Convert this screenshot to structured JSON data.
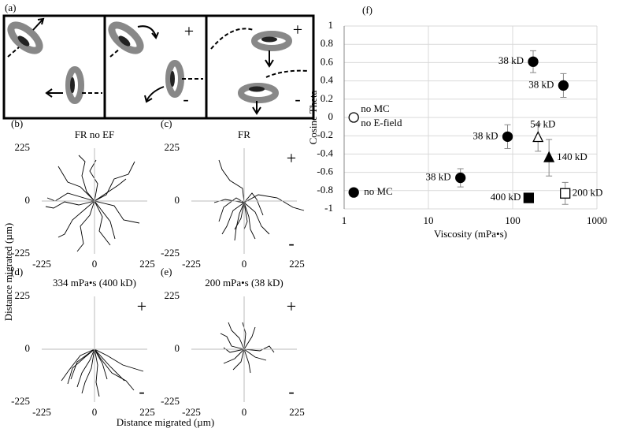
{
  "panel_a": {
    "panel": "(a)",
    "signs": [
      "+",
      "-",
      "+",
      "-"
    ]
  },
  "track_axes": {
    "xlabel": "Distance migrated (µm)",
    "ylabel": "Distance migrated (µm)"
  },
  "chart_data": [
    {
      "type": "track",
      "panel": "(b)",
      "title": "FR no EF",
      "xlim": [
        -225,
        225
      ],
      "ylim": [
        -225,
        225
      ],
      "xticks": [
        -225,
        0,
        225
      ],
      "yticks": [
        -225,
        0,
        225
      ],
      "annotations": []
    },
    {
      "type": "track",
      "panel": "(c)",
      "title": "FR",
      "xlim": [
        -225,
        225
      ],
      "ylim": [
        -225,
        225
      ],
      "xticks": [
        -225,
        0,
        225
      ],
      "yticks": [
        -225,
        0,
        225
      ],
      "annotations": [
        "+",
        "-"
      ]
    },
    {
      "type": "track",
      "panel": "(d)",
      "title": "334 mPa•s (400 kD)",
      "xlim": [
        -225,
        225
      ],
      "ylim": [
        -225,
        225
      ],
      "xticks": [
        -225,
        0,
        225
      ],
      "yticks": [
        -225,
        0,
        225
      ],
      "annotations": [
        "+",
        "-"
      ]
    },
    {
      "type": "track",
      "panel": "(e)",
      "title": "200 mPa•s  (38 kD)",
      "xlim": [
        -225,
        225
      ],
      "ylim": [
        -225,
        225
      ],
      "xticks": [
        -225,
        0,
        225
      ],
      "yticks": [
        -225,
        0,
        225
      ],
      "annotations": [
        "+",
        "-"
      ]
    },
    {
      "type": "scatter",
      "panel": "(f)",
      "x_label": "Viscosity (mPa•s)",
      "y_label": "Cosine Theta",
      "xscale": "log",
      "xlim": [
        1,
        1000
      ],
      "xticks": [
        1,
        10,
        100,
        1000
      ],
      "ylim": [
        -1,
        1
      ],
      "yticks": [
        -1,
        -0.8,
        -0.6,
        -0.4,
        -0.2,
        0,
        0.2,
        0.4,
        0.6,
        0.8,
        1
      ],
      "grid": true,
      "x": [
        1.3,
        24,
        87,
        175,
        400,
        1.3,
        200,
        270,
        155,
        420
      ],
      "values": [
        -0.82,
        -0.66,
        -0.21,
        0.61,
        0.35,
        0,
        -0.22,
        -0.44,
        -0.88,
        -0.83
      ],
      "errors": [
        null,
        0.1,
        0.13,
        0.12,
        0.13,
        0.04,
        0.15,
        0.2,
        null,
        0.12
      ],
      "markers": [
        "circle",
        "circle",
        "circle",
        "circle",
        "circle",
        "open-circle",
        "open-triangle",
        "triangle",
        "square",
        "open-square"
      ],
      "point_labels": [
        [
          "no MC"
        ],
        [
          "38 kD"
        ],
        [
          "38 kD"
        ],
        [
          "38 kD"
        ],
        [
          "38 kD"
        ],
        [
          "no MC",
          "no E-field"
        ],
        [
          "54 kD"
        ],
        [
          "140 kD"
        ],
        [
          "400 kD"
        ],
        [
          "200 kD"
        ]
      ],
      "color": "#000000"
    }
  ]
}
